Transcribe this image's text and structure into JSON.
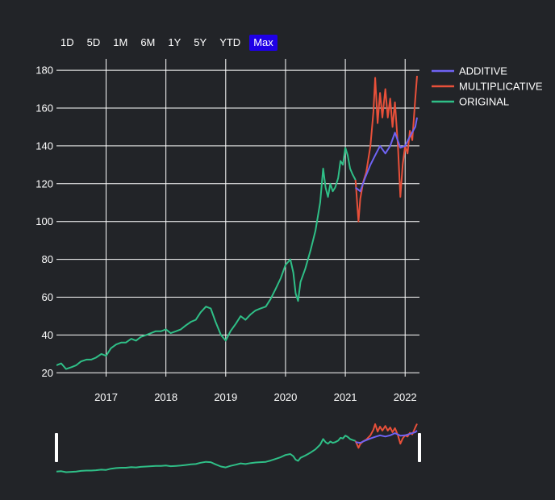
{
  "range_selector": {
    "buttons": [
      "1D",
      "5D",
      "1M",
      "6M",
      "1Y",
      "5Y",
      "YTD",
      "Max"
    ],
    "active": "Max",
    "active_color": "#1f00e6"
  },
  "chart_data": {
    "type": "line",
    "title": "",
    "xlabel": "",
    "ylabel": "",
    "xlim": [
      2016.17,
      2022.24
    ],
    "ylim": [
      18,
      186
    ],
    "x_ticks": [
      2017,
      2018,
      2019,
      2020,
      2021,
      2022
    ],
    "x_tick_labels": [
      "2017",
      "2018",
      "2019",
      "2020",
      "2021",
      "2022"
    ],
    "y_ticks": [
      20,
      40,
      60,
      80,
      100,
      120,
      140,
      160,
      180
    ],
    "y_tick_labels": [
      "20",
      "40",
      "60",
      "80",
      "100",
      "120",
      "140",
      "160",
      "180"
    ],
    "grid": true,
    "legend_position": "top-right",
    "range_slider": true,
    "series": [
      {
        "name": "ADDITIVE",
        "color": "#6f63f3",
        "x": [
          2021.17,
          2021.25,
          2021.33,
          2021.42,
          2021.5,
          2021.58,
          2021.67,
          2021.75,
          2021.83,
          2021.92,
          2022.0,
          2022.08,
          2022.17,
          2022.2
        ],
        "y": [
          118,
          116,
          123,
          130,
          135,
          140,
          136,
          140,
          147,
          139,
          140,
          145,
          150,
          155
        ]
      },
      {
        "name": "MULTIPLICATIVE",
        "color": "#e8503a",
        "x": [
          2021.17,
          2021.22,
          2021.25,
          2021.3,
          2021.35,
          2021.42,
          2021.47,
          2021.5,
          2021.54,
          2021.58,
          2021.62,
          2021.67,
          2021.71,
          2021.75,
          2021.79,
          2021.83,
          2021.88,
          2021.92,
          2021.96,
          2022.0,
          2022.04,
          2022.08,
          2022.12,
          2022.17,
          2022.2
        ],
        "y": [
          122,
          100,
          112,
          121,
          126,
          140,
          158,
          176,
          152,
          168,
          155,
          170,
          155,
          165,
          150,
          163,
          140,
          113,
          130,
          140,
          136,
          148,
          143,
          165,
          177
        ]
      },
      {
        "name": "ORIGINAL",
        "color": "#2fbf87",
        "x": [
          2016.17,
          2016.25,
          2016.33,
          2016.42,
          2016.5,
          2016.58,
          2016.67,
          2016.75,
          2016.83,
          2016.92,
          2017.0,
          2017.08,
          2017.17,
          2017.25,
          2017.33,
          2017.42,
          2017.5,
          2017.58,
          2017.67,
          2017.75,
          2017.83,
          2017.92,
          2018.0,
          2018.08,
          2018.17,
          2018.25,
          2018.33,
          2018.42,
          2018.5,
          2018.58,
          2018.67,
          2018.75,
          2018.83,
          2018.92,
          2019.0,
          2019.08,
          2019.17,
          2019.25,
          2019.33,
          2019.42,
          2019.5,
          2019.58,
          2019.67,
          2019.75,
          2019.83,
          2019.92,
          2020.0,
          2020.08,
          2020.13,
          2020.17,
          2020.21,
          2020.25,
          2020.33,
          2020.42,
          2020.5,
          2020.58,
          2020.63,
          2020.67,
          2020.71,
          2020.75,
          2020.79,
          2020.83,
          2020.88,
          2020.92,
          2020.96,
          2021.0,
          2021.04,
          2021.08,
          2021.12,
          2021.17
        ],
        "y": [
          24,
          25,
          22,
          23,
          24,
          26,
          27,
          27,
          28,
          30,
          29,
          33,
          35,
          36,
          36,
          38,
          37,
          39,
          40,
          41,
          42,
          42,
          43,
          41,
          42,
          43,
          45,
          47,
          48,
          52,
          55,
          54,
          47,
          40,
          37,
          42,
          46,
          50,
          48,
          51,
          53,
          54,
          55,
          59,
          64,
          70,
          77,
          80,
          73,
          62,
          58,
          68,
          75,
          85,
          95,
          110,
          128,
          118,
          113,
          120,
          116,
          118,
          123,
          132,
          130,
          139,
          135,
          128,
          125,
          122
        ]
      }
    ]
  }
}
